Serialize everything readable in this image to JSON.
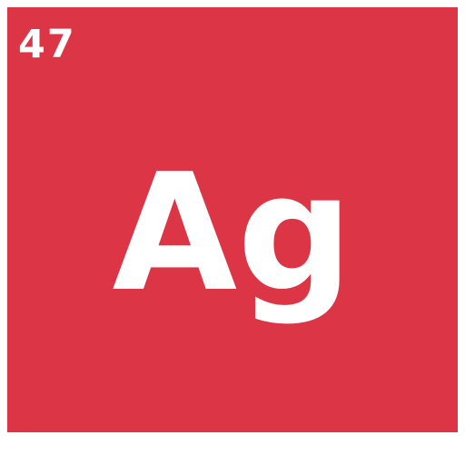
{
  "element": {
    "atomic_number": "47",
    "symbol": "Ag"
  },
  "colors": {
    "tile_background": "#dc3545",
    "text": "#ffffff",
    "page_background": "#ffffff"
  }
}
